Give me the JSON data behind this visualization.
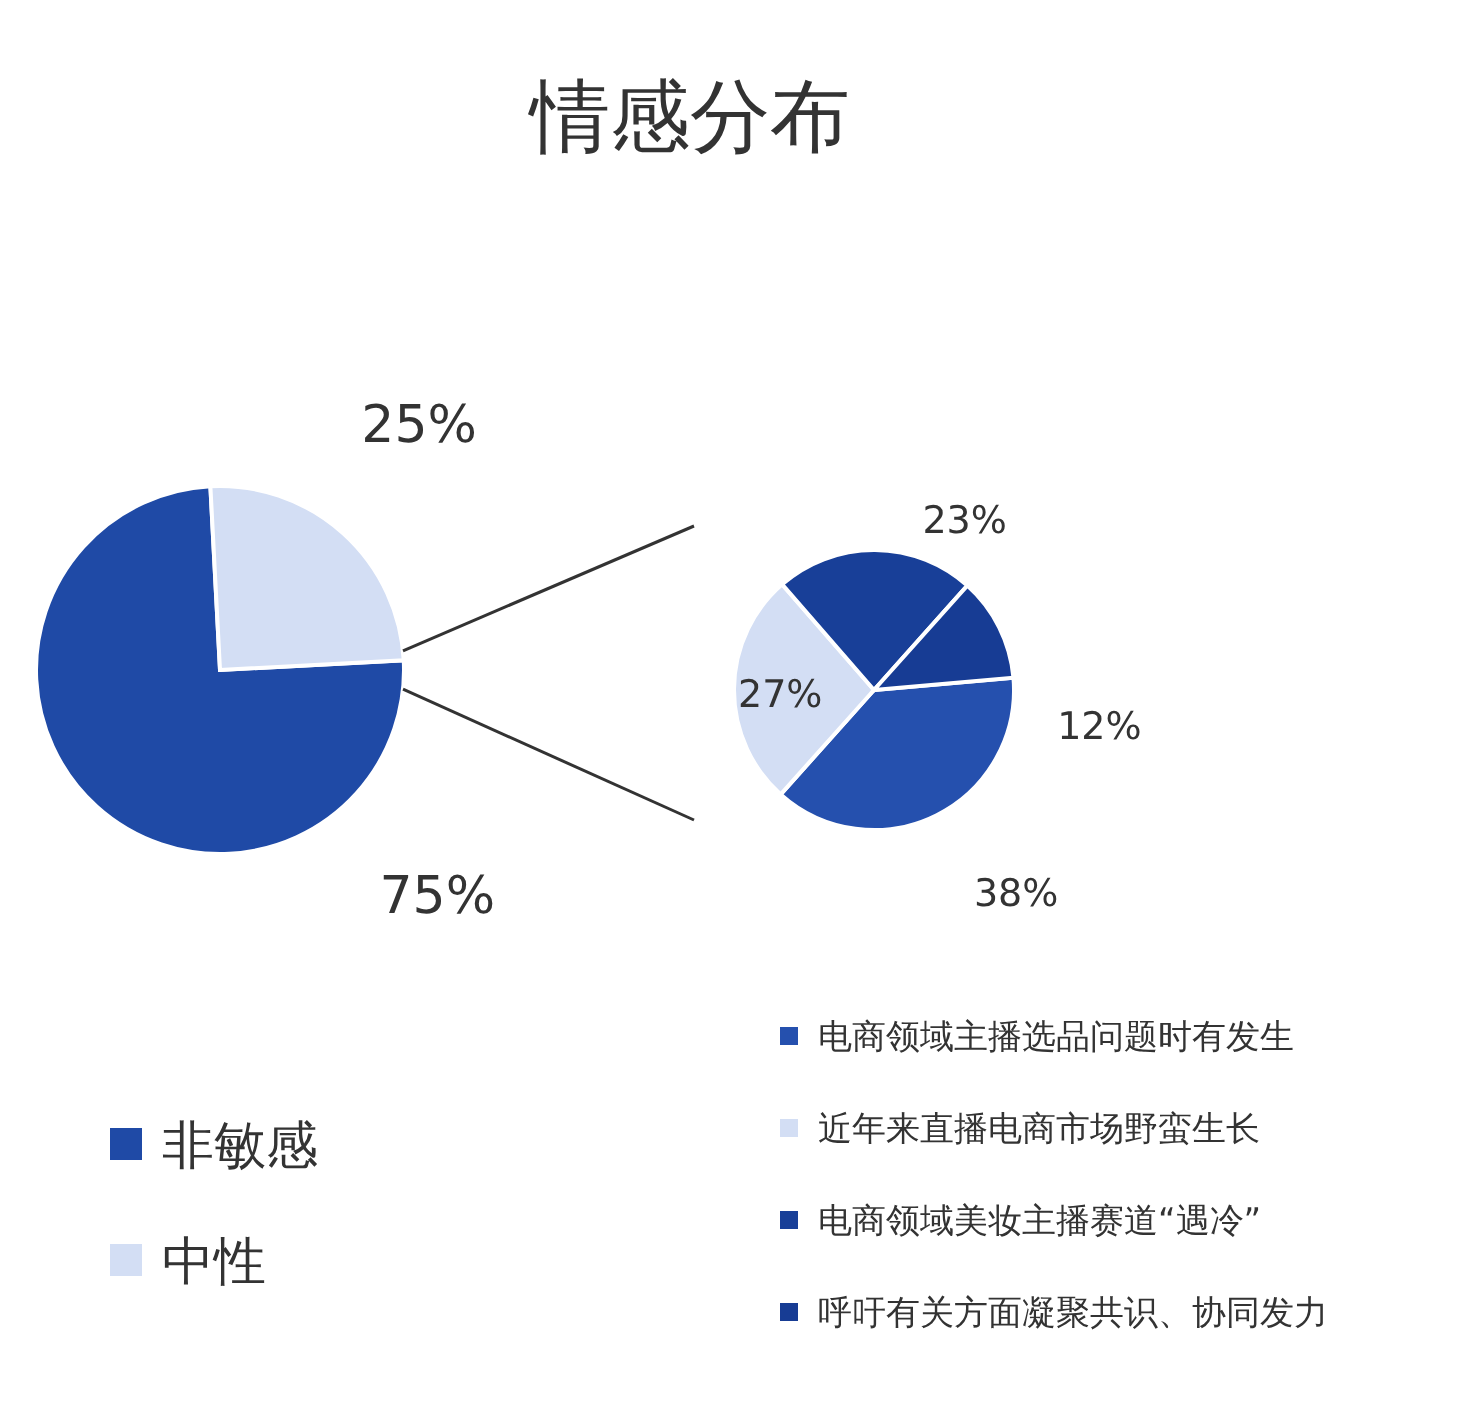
{
  "chart_data": [
    {
      "type": "pie",
      "title": "情感分布",
      "categories": [
        "非敏感",
        "中性"
      ],
      "values": [
        75,
        25
      ],
      "colors": [
        "#1f4aa6",
        "#d3def4"
      ],
      "value_labels": [
        "75%",
        "25%"
      ],
      "legend": "bottom left"
    },
    {
      "type": "pie",
      "categories": [
        "电商领域主播选品问题时有发生",
        "近年来直播电商市场野蛮生长",
        "电商领域美妆主播赛道“遇冷”",
        "呼吁有关方面凝聚共识、协同发力"
      ],
      "values": [
        38,
        27,
        23,
        12
      ],
      "colors": [
        "#2550ae",
        "#d3def4",
        "#183f98",
        "#173c94"
      ],
      "value_labels": [
        "38%",
        "27%",
        "23%",
        "12%"
      ],
      "legend": "bottom right"
    }
  ]
}
